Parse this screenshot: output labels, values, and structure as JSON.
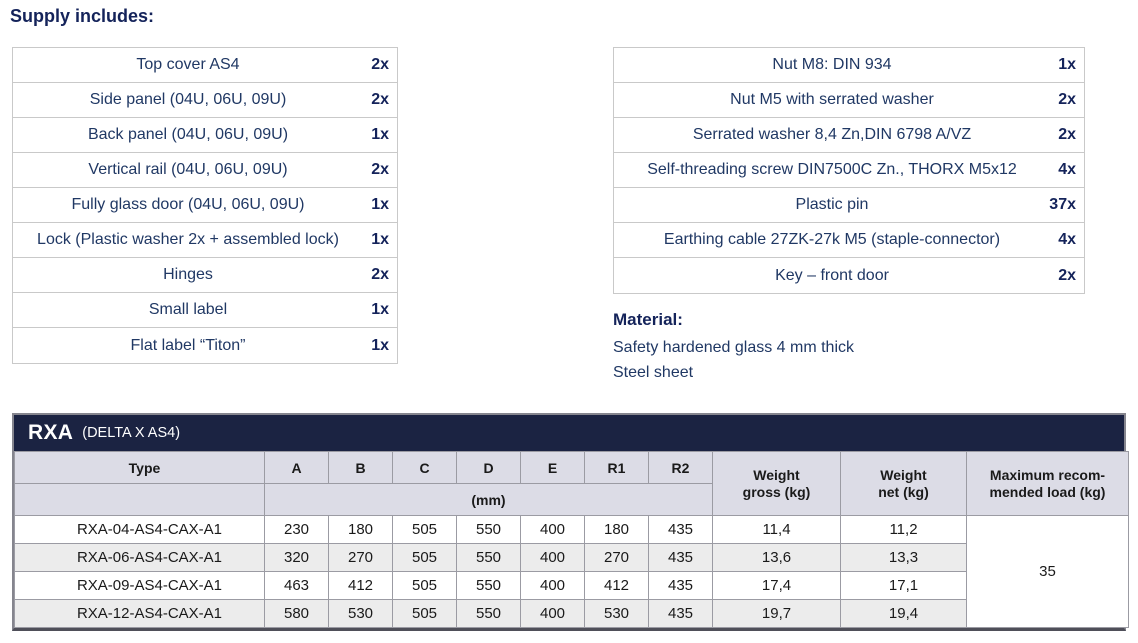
{
  "heading": "Supply includes:",
  "supply_left": [
    {
      "label": "Top cover AS4",
      "qty": "2x"
    },
    {
      "label": "Side panel (04U, 06U, 09U)",
      "qty": "2x"
    },
    {
      "label": "Back panel (04U, 06U, 09U)",
      "qty": "1x"
    },
    {
      "label": "Vertical rail (04U, 06U, 09U)",
      "qty": "2x"
    },
    {
      "label": "Fully glass door (04U, 06U, 09U)",
      "qty": "1x"
    },
    {
      "label": "Lock (Plastic washer 2x + assembled lock)",
      "qty": "1x"
    },
    {
      "label": "Hinges",
      "qty": "2x"
    },
    {
      "label": "Small label",
      "qty": "1x"
    },
    {
      "label": "Flat label “Titon”",
      "qty": "1x"
    }
  ],
  "supply_right": [
    {
      "label": "Nut M8: DIN 934",
      "qty": "1x"
    },
    {
      "label": "Nut M5 with serrated washer",
      "qty": "2x"
    },
    {
      "label": "Serrated washer 8,4 Zn,DIN 6798 A/VZ",
      "qty": "2x"
    },
    {
      "label": "Self-threading screw DIN7500C Zn., THORX M5x12",
      "qty": "4x"
    },
    {
      "label": "Plastic pin",
      "qty": "37x"
    },
    {
      "label": "Earthing cable 27ZK-27k M5 (staple-connector)",
      "qty": "4x"
    },
    {
      "label": "Key – front door",
      "qty": "2x"
    }
  ],
  "material": {
    "heading": "Material:",
    "lines": [
      "Safety hardened glass 4 mm thick",
      "Steel sheet"
    ]
  },
  "spec": {
    "title": "RXA",
    "subtitle": "(DELTA X AS4)",
    "type_header": "Type",
    "dims": [
      "A",
      "B",
      "C",
      "D",
      "E",
      "R1",
      "R2"
    ],
    "unit_label": "(mm)",
    "weight_gross_header": {
      "line1": "Weight",
      "line2": "gross (kg)"
    },
    "weight_net_header": {
      "line1": "Weight",
      "line2": "net (kg)"
    },
    "max_load_header": {
      "line1": "Maximum recom-",
      "line2": "mended load (kg)"
    },
    "rows": [
      {
        "type": "RXA-04-AS4-CAX-A1",
        "a": "230",
        "b": "180",
        "c": "505",
        "d": "550",
        "e": "400",
        "r1": "180",
        "r2": "435",
        "weight_gross": "11,4",
        "weight_net": "11,2"
      },
      {
        "type": "RXA-06-AS4-CAX-A1",
        "a": "320",
        "b": "270",
        "c": "505",
        "d": "550",
        "e": "400",
        "r1": "270",
        "r2": "435",
        "weight_gross": "13,6",
        "weight_net": "13,3"
      },
      {
        "type": "RXA-09-AS4-CAX-A1",
        "a": "463",
        "b": "412",
        "c": "505",
        "d": "550",
        "e": "400",
        "r1": "412",
        "r2": "435",
        "weight_gross": "17,4",
        "weight_net": "17,1"
      },
      {
        "type": "RXA-12-AS4-CAX-A1",
        "a": "580",
        "b": "530",
        "c": "505",
        "d": "550",
        "e": "400",
        "r1": "530",
        "r2": "435",
        "weight_gross": "19,7",
        "weight_net": "19,4"
      }
    ],
    "max_load": "35"
  },
  "colors": {
    "navy-bar": "#1b2342",
    "text-navy": "#203864",
    "text-navy-bold": "#14235a",
    "supply-border": "#c9c9c9",
    "spec-border": "#9b9ba3",
    "spec-outer": "#85858e",
    "spec-bottom": "#4f4f59",
    "spec-header-bg": "#dcdce6",
    "spec-stripe-bg": "#ececec",
    "spec-text": "#1a1a1a"
  }
}
